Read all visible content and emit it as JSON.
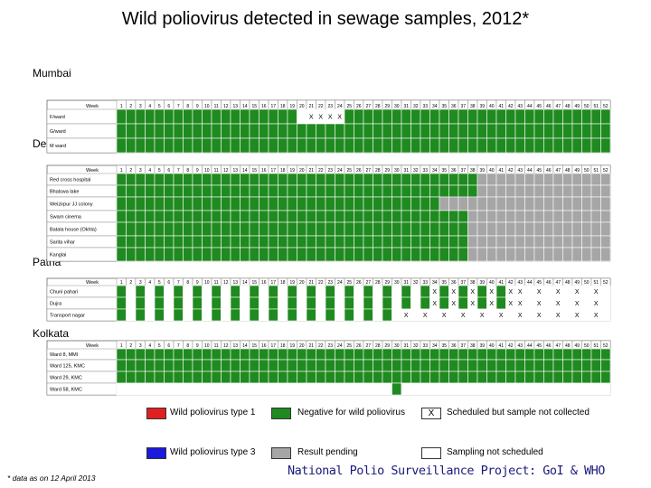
{
  "title": "Wild poliovirus detected in sewage samples, 2012*",
  "colors": {
    "negative": "#1f8a1f",
    "pending": "#a6a6a6",
    "type1": "#e02020",
    "type3": "#1a1adc",
    "scheduled": "#ffffff",
    "none": "#ffffff"
  },
  "chart_data": {
    "type": "table",
    "title": "Wild poliovirus detected in sewage samples, 2012*",
    "week_label": "Week",
    "weeks": [
      "1",
      "2",
      "3",
      "4",
      "5",
      "6",
      "7",
      "8",
      "9",
      "10",
      "11",
      "12",
      "13",
      "14",
      "15",
      "16",
      "17",
      "18",
      "19",
      "20",
      "21",
      "22",
      "23",
      "24",
      "25",
      "26",
      "27",
      "28",
      "29",
      "30",
      "31",
      "32",
      "33",
      "34",
      "35",
      "36",
      "37",
      "38",
      "39",
      "40",
      "41",
      "42",
      "43",
      "44",
      "45",
      "46",
      "47",
      "48",
      "49",
      "50",
      "51",
      "52"
    ],
    "cell_codes": {
      "G": "Negative for wild poliovirus",
      "P": "Result pending",
      "X": "Scheduled but sample not collected",
      "W": "Sampling not scheduled"
    },
    "panels": [
      {
        "city": "Mumbai",
        "sites": [
          {
            "name": "F/ward",
            "cells": "GGGGGGGGGGGGGGGGGGGWXXXXGGGGGGGGGGGGGGGGGGGGGGGGGGGG"
          },
          {
            "name": "G/ward",
            "cells": "GGGGGGGGGGGGGGGGGGGGGGGGGGGGGGGGGGGGGGGGGGGGGGGGGGGG"
          },
          {
            "name": "M ward",
            "cells": "GGGGGGGGGGGGGGGGGGGGGGGGGGGGGGGGGGGGGGGGGGGGGGGGGGGG"
          }
        ]
      },
      {
        "city": "Delhi",
        "sites": [
          {
            "name": "Red cross hospital",
            "cells": "GGGGGGGGGGGGGGGGGGGGGGGGGGGGGGGGGGGGGGPPPPPPPPPPPPPP"
          },
          {
            "name": "Bhalswa lake",
            "cells": "GGGGGGGGGGGGGGGGGGGGGGGGGGGGGGGGGGGGGGPPPPPPPPPPPPPP"
          },
          {
            "name": "Weizirpur JJ colony",
            "cells": "GGGGGGGGGGGGGGGGGGGGGGGGGGGGGGGGGGPPPPPPPPPPPPPPPPPP"
          },
          {
            "name": "Swarn cinema",
            "cells": "GGGGGGGGGGGGGGGGGGGGGGGGGGGGGGGGGGGGGPPPPPPPPPPPPPPP"
          },
          {
            "name": "Batala house (Okhla)",
            "cells": "GGGGGGGGGGGGGGGGGGGGGGGGGGGGGGGGGGGGGPPPPPPPPPPPPPPP"
          },
          {
            "name": "Sarita vihar",
            "cells": "GGGGGGGGGGGGGGGGGGGGGGGGGGGGGGGGGGGGGPPPPPPPPPPPPPPP"
          },
          {
            "name": "Kanglai",
            "cells": "GGGGGGGGGGGGGGGGGGGGGGGGGGGGGGGGGGGGGPPPPPPPPPPPPPPP"
          }
        ]
      },
      {
        "city": "Patna",
        "sites": [
          {
            "name": "Chuni pahari",
            "cells": "GWGWGWGWGWGWGWGWGWGWGWGWGWGWGWGWGXGXGXGXGXXWXWXWXWXW"
          },
          {
            "name": "Dujra",
            "cells": "GWGWGWGWGWGWGWGWGWGWGWGWGWGWGWGWGXGXGXGXGXXWXWXWXWXW"
          },
          {
            "name": "Transport nagar",
            "cells": "GWGWGWGWGWGWGWGWGWGWGWGWGWGWGWXWXWXWXWXWXWXWXWXWXWXW"
          }
        ]
      },
      {
        "city": "Kolkata",
        "sites": [
          {
            "name": "Ward 8, MMI",
            "cells": "GGGGGGGGGGGGGGGGGGGGGGGGGGGGGGGGGGGGGGGGGGGGGGGGGGGG"
          },
          {
            "name": "Ward 125, KMC",
            "cells": "GGGGGGGGGGGGGGGGGGGGGGGGGGGGGGGGGGGGGGGGGGGGGGGGGGGG"
          },
          {
            "name": "Ward 29, KMC",
            "cells": "GGGGGGGGGGGGGGGGGGGGGGGGGGGGGGGGGGGGGGGGGGGGGGGGGGGG"
          },
          {
            "name": "Ward 58, KMC",
            "cells": "WWWWWWWWWWWWWWWWWWWWWWWWWWWWWGWWWWWWWWWWWWWWWWWWWWWW"
          }
        ]
      }
    ],
    "legend": [
      {
        "key": "type1",
        "label": "Wild poliovirus type 1"
      },
      {
        "key": "negative",
        "label": "Negative for wild poliovirus"
      },
      {
        "key": "scheduled",
        "label": "Scheduled but sample not collected",
        "mark": "X"
      },
      {
        "key": "type3",
        "label": "Wild poliovirus type 3"
      },
      {
        "key": "pending",
        "label": "Result pending"
      },
      {
        "key": "none",
        "label": "Sampling not scheduled"
      }
    ]
  },
  "footnote": "* data as on 12 April 2013",
  "footer": "National Polio Surveillance Project: GoI & WHO"
}
